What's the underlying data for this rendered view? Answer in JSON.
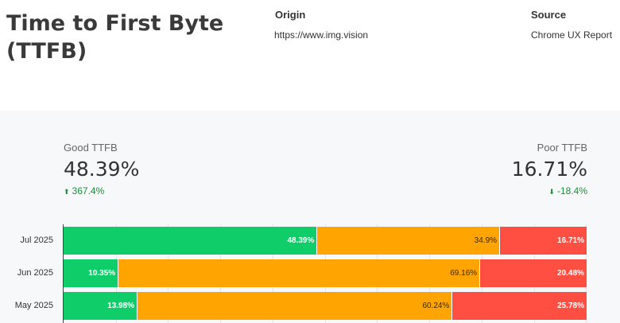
{
  "header": {
    "title": "Time to First Byte (TTFB)",
    "origin_label": "Origin",
    "origin_value": "https://www.img.vision",
    "source_label": "Source",
    "source_value": "Chrome UX Report"
  },
  "kpis": {
    "good": {
      "label": "Good TTFB",
      "value": "48.39%",
      "change": "367.4%",
      "direction": "up",
      "color": "#1a8f3a"
    },
    "poor": {
      "label": "Poor TTFB",
      "value": "16.71%",
      "change": "-18.4%",
      "direction": "down",
      "color": "#1a8f3a"
    }
  },
  "colors": {
    "good": "#0fce6a",
    "needs_improvement": "#ffa400",
    "poor": "#ff4e42"
  },
  "rows": [
    {
      "label": "Jul 2025",
      "good": 48.39,
      "mid": 34.9,
      "poor": 16.71,
      "good_text": "48.39%",
      "mid_text": "34.9%",
      "poor_text": "16.71%"
    },
    {
      "label": "Jun 2025",
      "good": 10.35,
      "mid": 69.16,
      "poor": 20.48,
      "good_text": "10.35%",
      "mid_text": "69.16%",
      "poor_text": "20.48%"
    },
    {
      "label": "May 2025",
      "good": 13.98,
      "mid": 60.24,
      "poor": 25.78,
      "good_text": "13.98%",
      "mid_text": "60.24%",
      "poor_text": "25.78%"
    }
  ]
}
